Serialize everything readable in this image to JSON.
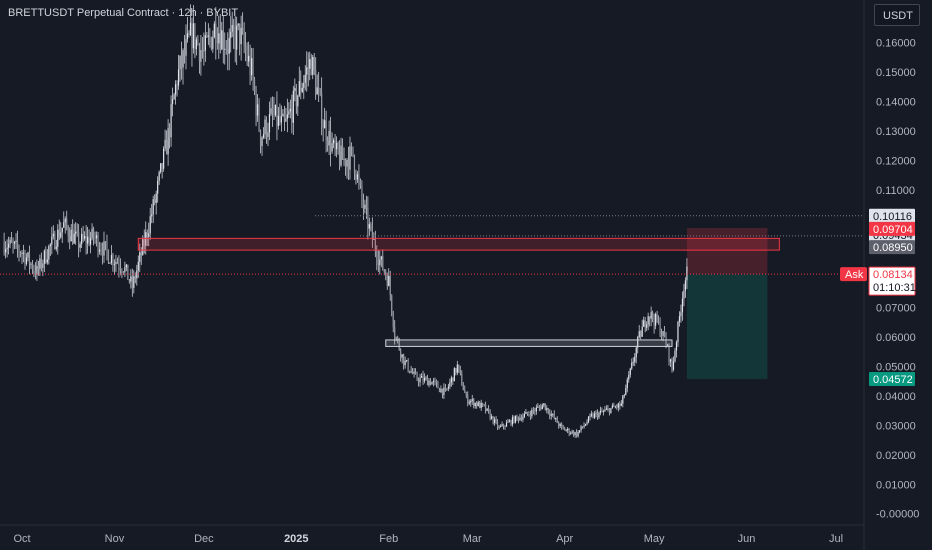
{
  "header": {
    "symbol": "BRETTUSDT Perpetual Contract",
    "interval": "12h",
    "exchange": "BYBIT",
    "currency": "USDT"
  },
  "chart_data": {
    "type": "candlestick",
    "title": "BRETTUSDT Perpetual Contract · 12h · BYBIT",
    "ylim": [
      -0.0035,
      0.1695
    ],
    "y_ticks": [
      "0.16000",
      "0.15000",
      "0.14000",
      "0.13000",
      "0.12000",
      "0.11000",
      "0.07000",
      "0.06000",
      "0.05000",
      "0.04000",
      "0.03000",
      "0.02000",
      "0.01000",
      "-0.00000"
    ],
    "y_tick_values": [
      0.16,
      0.15,
      0.14,
      0.13,
      0.12,
      0.11,
      0.07,
      0.06,
      0.05,
      0.04,
      0.03,
      0.02,
      0.01,
      0.0
    ],
    "x_ticks": [
      {
        "label": "Oct",
        "date": "2024-10-01"
      },
      {
        "label": "Nov",
        "date": "2024-11-01"
      },
      {
        "label": "Dec",
        "date": "2024-12-01"
      },
      {
        "label": "2025",
        "date": "2025-01-01",
        "bold": true
      },
      {
        "label": "Feb",
        "date": "2025-02-01"
      },
      {
        "label": "Mar",
        "date": "2025-03-01"
      },
      {
        "label": "Apr",
        "date": "2025-04-01"
      },
      {
        "label": "May",
        "date": "2025-05-01"
      },
      {
        "label": "Jun",
        "date": "2025-06-01"
      },
      {
        "label": "Jul",
        "date": "2025-07-01"
      }
    ],
    "x_range": [
      "2024-09-25",
      "2025-07-12"
    ],
    "price_path": [
      [
        "2024-09-25",
        0.092
      ],
      [
        "2024-10-01",
        0.089
      ],
      [
        "2024-10-06",
        0.082
      ],
      [
        "2024-10-10",
        0.09
      ],
      [
        "2024-10-15",
        0.098
      ],
      [
        "2024-10-20",
        0.092
      ],
      [
        "2024-10-25",
        0.094
      ],
      [
        "2024-10-30",
        0.088
      ],
      [
        "2024-11-04",
        0.084
      ],
      [
        "2024-11-07",
        0.077
      ],
      [
        "2024-11-11",
        0.092
      ],
      [
        "2024-11-15",
        0.108
      ],
      [
        "2024-11-19",
        0.128
      ],
      [
        "2024-11-22",
        0.148
      ],
      [
        "2024-11-27",
        0.163
      ],
      [
        "2024-12-01",
        0.156
      ],
      [
        "2024-12-05",
        0.166
      ],
      [
        "2024-12-09",
        0.159
      ],
      [
        "2024-12-13",
        0.163
      ],
      [
        "2024-12-17",
        0.15
      ],
      [
        "2024-12-20",
        0.128
      ],
      [
        "2024-12-24",
        0.135
      ],
      [
        "2024-12-28",
        0.131
      ],
      [
        "2025-01-02",
        0.144
      ],
      [
        "2025-01-06",
        0.154
      ],
      [
        "2025-01-10",
        0.133
      ],
      [
        "2025-01-14",
        0.122
      ],
      [
        "2025-01-17",
        0.12
      ],
      [
        "2025-01-20",
        0.122
      ],
      [
        "2025-01-23",
        0.106
      ],
      [
        "2025-01-26",
        0.095
      ],
      [
        "2025-01-29",
        0.086
      ],
      [
        "2025-02-01",
        0.079
      ],
      [
        "2025-02-03",
        0.061
      ],
      [
        "2025-02-06",
        0.052
      ],
      [
        "2025-02-10",
        0.046
      ],
      [
        "2025-02-15",
        0.045
      ],
      [
        "2025-02-20",
        0.041
      ],
      [
        "2025-02-24",
        0.05
      ],
      [
        "2025-02-27",
        0.039
      ],
      [
        "2025-03-05",
        0.036
      ],
      [
        "2025-03-10",
        0.029
      ],
      [
        "2025-03-15",
        0.032
      ],
      [
        "2025-03-20",
        0.034
      ],
      [
        "2025-03-25",
        0.037
      ],
      [
        "2025-03-31",
        0.029
      ],
      [
        "2025-04-05",
        0.027
      ],
      [
        "2025-04-10",
        0.033
      ],
      [
        "2025-04-15",
        0.035
      ],
      [
        "2025-04-20",
        0.037
      ],
      [
        "2025-04-23",
        0.048
      ],
      [
        "2025-04-26",
        0.06
      ],
      [
        "2025-04-29",
        0.068
      ],
      [
        "2025-05-02",
        0.065
      ],
      [
        "2025-05-05",
        0.058
      ],
      [
        "2025-05-07",
        0.049
      ],
      [
        "2025-05-09",
        0.063
      ],
      [
        "2025-05-11",
        0.078
      ],
      [
        "2025-05-12",
        0.08134
      ]
    ],
    "resistance_zone": {
      "from": "2024-11-09",
      "to": "2025-06-12",
      "low": 0.0895,
      "high": 0.0935
    },
    "support_zone": {
      "from": "2025-01-31",
      "to": "2025-05-07",
      "low": 0.0568,
      "high": 0.059
    },
    "position": {
      "from": "2025-05-12",
      "to": "2025-06-08",
      "entry": 0.08134,
      "target_top": 0.097,
      "stop": 0.04572
    },
    "levels": [
      {
        "label": "0.10116",
        "value": 0.10116,
        "style": "dark"
      },
      {
        "label": "0.09704",
        "value": 0.09704,
        "style": "red"
      },
      {
        "label": "0.09434",
        "value": 0.09434,
        "style": "dark"
      },
      {
        "label": "0.08950",
        "value": 0.0895,
        "style": "dark"
      }
    ],
    "current_price": {
      "label": "Ask",
      "value": 0.08134,
      "value_text": "0.08134",
      "countdown": "01:10:31"
    },
    "stop_label": {
      "value": 0.04572,
      "value_text": "0.04572"
    },
    "colors": {
      "background": "#161a25",
      "candles": "#c9ccd4",
      "resistance": "#f23645",
      "support": "#b2b5be",
      "profit_zone": "#f23645",
      "loss_zone": "#089981",
      "ask": "#f23645"
    }
  }
}
